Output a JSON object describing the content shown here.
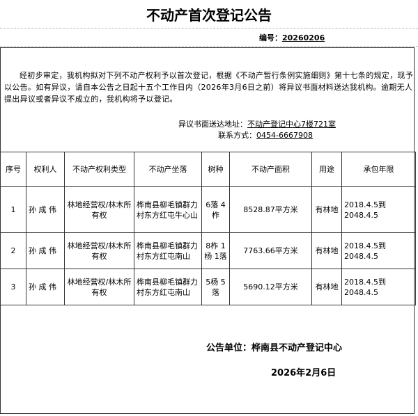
{
  "title": "不动产首次登记公告",
  "doc_no_label": "编号：",
  "doc_no": "20260206",
  "body_text": "经初步审定，我机构拟对下列不动产权利予以首次登记，根据《不动产暂行条例实施细则》第十七条的规定，现予以公告。如有异议，请自本公告之日起十五个工作日内（2026年3月6日之前）将异议书面材料送达我机构。逾期无人提出异议或者异议不成立的，我机构将予以登记。",
  "address_label": "异议书面送达地址：",
  "address": "不动产登记中心7楼721室",
  "phone_label": "联系方式：",
  "phone": "0454-6667908",
  "table": {
    "headers": [
      "序号",
      "权利人",
      "不动产权利类型",
      "不动产坐落",
      "树种",
      "不动产面积",
      "用途",
      "承包年限"
    ],
    "rows": [
      {
        "no": "1",
        "holder": "孙 成 伟",
        "type": "林地经营权/林木所有权",
        "location": "桦南县柳毛镇群力村东方红屯牛心山",
        "species": "6落 4柞",
        "area": "8528.87平方米",
        "use": "有林地",
        "term": "2018.4.5到2048.4.5"
      },
      {
        "no": "2",
        "holder": "孙 成 伟",
        "type": "林地经营权/林木所有权",
        "location": "桦南县柳毛镇群力村东方红屯南山",
        "species": "8柞 1杨 1落",
        "area": "7763.66平方米",
        "use": "有林地",
        "term": "2018.4.5到2048.4.5"
      },
      {
        "no": "3",
        "holder": "孙 成 伟",
        "type": "林地经营权/林木所有权",
        "location": "桦南县柳毛镇群力村东方红屯南山",
        "species": "5杨 5落",
        "area": "5690.12平方米",
        "use": "有林地",
        "term": "2018.4.5到2048.4.5"
      }
    ]
  },
  "unit_label": "公告单位：桦南县不动产登记中心",
  "date": "2026年2月6日"
}
